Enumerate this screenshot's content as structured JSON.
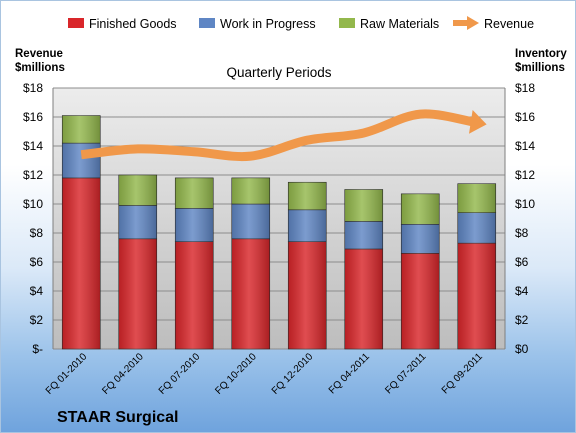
{
  "chart_data": {
    "type": "bar",
    "stacked": true,
    "title": "Quarterly Periods",
    "company": "STAAR Surgical",
    "ylabel_left": [
      "Revenue",
      "$millions"
    ],
    "ylabel_right": [
      "Inventory",
      "$millions"
    ],
    "ylim": [
      0,
      18
    ],
    "yticks_left": [
      "$-",
      "$2",
      "$4",
      "$6",
      "$8",
      "$10",
      "$12",
      "$14",
      "$16",
      "$18"
    ],
    "yticks_right": [
      "$0",
      "$2",
      "$4",
      "$6",
      "$8",
      "$10",
      "$12",
      "$14",
      "$16",
      "$18"
    ],
    "grid": true,
    "legend_position": "top",
    "categories": [
      "FQ 01-2010",
      "FQ 04-2010",
      "FQ 07-2010",
      "FQ 10-2010",
      "FQ 12-2010",
      "FQ 04-2011",
      "FQ 07-2011",
      "FQ 09-2011"
    ],
    "series": [
      {
        "name": "Finished Goods",
        "kind": "bar",
        "color": "#d9262a",
        "values": [
          11.8,
          7.6,
          7.4,
          7.6,
          7.4,
          6.9,
          6.6,
          7.3
        ]
      },
      {
        "name": "Work in Progress",
        "kind": "bar",
        "color": "#5f86c4",
        "values": [
          2.4,
          2.3,
          2.3,
          2.4,
          2.2,
          1.9,
          2.0,
          2.1
        ]
      },
      {
        "name": "Raw Materials",
        "kind": "bar",
        "color": "#93b84c",
        "values": [
          1.9,
          2.1,
          2.1,
          1.8,
          1.9,
          2.2,
          2.1,
          2.0
        ]
      },
      {
        "name": "Revenue",
        "kind": "line",
        "color": "#f0984a",
        "values": [
          13.4,
          13.8,
          13.6,
          13.3,
          14.4,
          14.9,
          16.2,
          15.6
        ]
      }
    ]
  }
}
